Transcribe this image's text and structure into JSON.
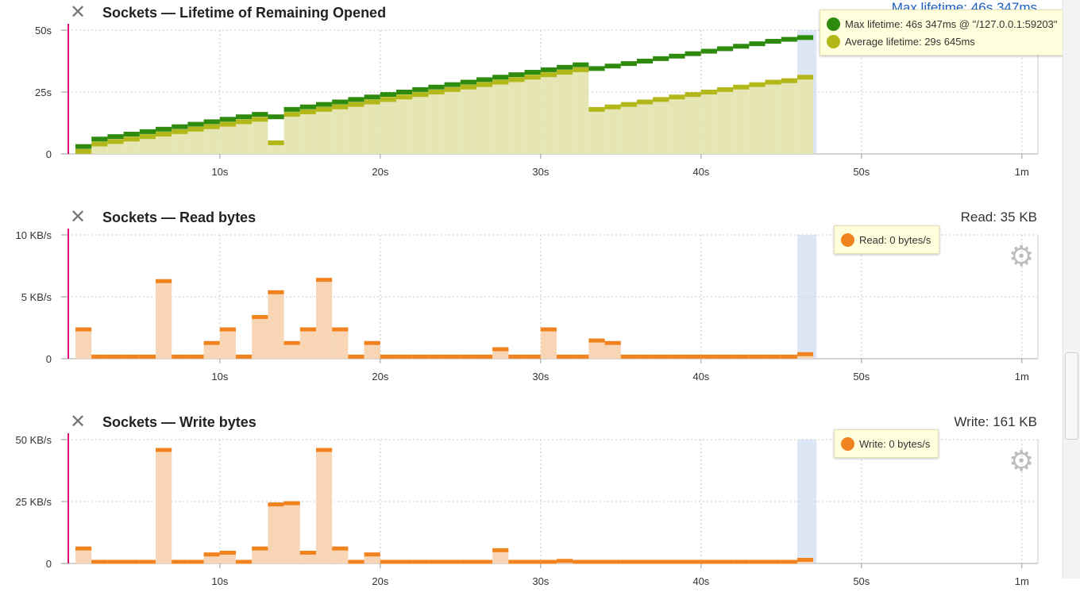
{
  "panels": [
    {
      "title": "Sockets — Lifetime of Remaining Opened",
      "stat": "Max lifetime: 46s 347ms",
      "tooltip": [
        {
          "color": "#2e8b0e",
          "text": "Max lifetime: 46s 347ms @ \"/127.0.0.1:59203\""
        },
        {
          "color": "#b3b81a",
          "text": "Average lifetime: 29s 645ms"
        }
      ]
    },
    {
      "title": "Sockets — Read bytes",
      "stat": "Read: 35 KB",
      "tooltip": [
        {
          "color": "#f0831e",
          "text": "Read: 0 bytes/s"
        }
      ]
    },
    {
      "title": "Sockets — Write bytes",
      "stat": "Write: 161 KB",
      "tooltip": [
        {
          "color": "#f0831e",
          "text": "Write: 0 bytes/s"
        }
      ]
    }
  ],
  "icons": {
    "close": "close-icon",
    "settings": "gear-icon"
  },
  "chart_data": [
    {
      "type": "area",
      "title": "Sockets — Lifetime of Remaining Opened",
      "x_tick_labels": [
        "10s",
        "20s",
        "30s",
        "40s",
        "50s",
        "1m"
      ],
      "x_ticks": [
        10,
        20,
        30,
        40,
        50,
        60
      ],
      "y_tick_labels": [
        "0",
        "25s",
        "50s"
      ],
      "y_ticks": [
        0,
        25,
        50
      ],
      "xlim": [
        0.5,
        61
      ],
      "ylim": [
        0,
        50
      ],
      "grid": true,
      "marker_x": 1,
      "highlight_range": [
        46,
        47.2
      ],
      "series": [
        {
          "name": "Max lifetime",
          "color": "#2e8b0e",
          "x": [
            1,
            2,
            3,
            4,
            5,
            6,
            7,
            8,
            9,
            10,
            11,
            12,
            13,
            14,
            15,
            16,
            17,
            18,
            19,
            20,
            21,
            22,
            23,
            24,
            25,
            26,
            27,
            28,
            29,
            30,
            31,
            32,
            33,
            34,
            35,
            36,
            37,
            38,
            39,
            40,
            41,
            42,
            43,
            44,
            45,
            46
          ],
          "values": [
            3,
            6,
            7,
            8,
            9,
            10,
            11,
            12,
            13,
            14,
            15,
            16,
            15,
            18,
            19,
            20,
            21,
            22,
            23,
            24,
            25,
            26,
            27,
            28,
            29,
            30,
            31,
            32,
            33,
            34,
            35,
            36,
            34.5,
            35.5,
            36.5,
            37.5,
            38.5,
            39.5,
            40.5,
            41.5,
            42.5,
            43.5,
            44.5,
            45.5,
            46.3,
            47
          ]
        },
        {
          "name": "Average lifetime",
          "color": "#b3b81a",
          "fill": "#e6e6b5",
          "x": [
            1,
            2,
            3,
            4,
            5,
            6,
            7,
            8,
            9,
            10,
            11,
            12,
            13,
            14,
            15,
            16,
            17,
            18,
            19,
            20,
            21,
            22,
            23,
            24,
            25,
            26,
            27,
            28,
            29,
            30,
            31,
            32,
            33,
            34,
            35,
            36,
            37,
            38,
            39,
            40,
            41,
            42,
            43,
            44,
            45,
            46
          ],
          "values": [
            1,
            4,
            5,
            6,
            7,
            8,
            9,
            10,
            11,
            12,
            13,
            14,
            4.5,
            16,
            17,
            18,
            19,
            20,
            21,
            22,
            23,
            24,
            25,
            26,
            27,
            28,
            29,
            30,
            31,
            32,
            33,
            34,
            18,
            19,
            20,
            21,
            22,
            23,
            24,
            25,
            26,
            27,
            28,
            29,
            29.6,
            31
          ]
        }
      ]
    },
    {
      "type": "bar",
      "title": "Sockets — Read bytes",
      "x_tick_labels": [
        "10s",
        "20s",
        "30s",
        "40s",
        "50s",
        "1m"
      ],
      "x_ticks": [
        10,
        20,
        30,
        40,
        50,
        60
      ],
      "y_tick_labels": [
        "0",
        "5 KB/s",
        "10 KB/s"
      ],
      "y_ticks": [
        0,
        5,
        10
      ],
      "xlim": [
        0.5,
        61
      ],
      "ylim": [
        0,
        10
      ],
      "grid": true,
      "marker_x": 1,
      "highlight_range": [
        46,
        47.2
      ],
      "series": [
        {
          "name": "Read",
          "unit": "KB/s",
          "color": "#f0831e",
          "fill": "#f8d5b5",
          "x": [
            1,
            2,
            3,
            4,
            5,
            6,
            7,
            8,
            9,
            10,
            11,
            12,
            13,
            14,
            15,
            16,
            17,
            18,
            19,
            20,
            21,
            22,
            23,
            24,
            25,
            26,
            27,
            28,
            29,
            30,
            31,
            32,
            33,
            34,
            35,
            36,
            37,
            38,
            39,
            40,
            41,
            42,
            43,
            44,
            45,
            46
          ],
          "values": [
            2.4,
            0.2,
            0.2,
            0.2,
            0.2,
            6.3,
            0.2,
            0.2,
            1.3,
            2.4,
            0.2,
            3.4,
            5.4,
            1.3,
            2.4,
            6.4,
            2.4,
            0.2,
            1.3,
            0.2,
            0.2,
            0.2,
            0.2,
            0.2,
            0.2,
            0.2,
            0.8,
            0.2,
            0.2,
            2.4,
            0.2,
            0.2,
            1.5,
            1.3,
            0.2,
            0.2,
            0.2,
            0.2,
            0.2,
            0.2,
            0.2,
            0.2,
            0.2,
            0.2,
            0.2,
            0.4
          ]
        }
      ]
    },
    {
      "type": "bar",
      "title": "Sockets — Write bytes",
      "x_tick_labels": [
        "10s",
        "20s",
        "30s",
        "40s",
        "50s",
        "1m"
      ],
      "x_ticks": [
        10,
        20,
        30,
        40,
        50,
        60
      ],
      "y_tick_labels": [
        "0",
        "25 KB/s",
        "50 KB/s"
      ],
      "y_ticks": [
        0,
        25,
        50
      ],
      "xlim": [
        0.5,
        61
      ],
      "ylim": [
        0,
        50
      ],
      "grid": true,
      "marker_x": 1,
      "highlight_range": [
        46,
        47.2
      ],
      "series": [
        {
          "name": "Write",
          "unit": "KB/s",
          "color": "#f0831e",
          "fill": "#f8d5b5",
          "x": [
            1,
            2,
            3,
            4,
            5,
            6,
            7,
            8,
            9,
            10,
            11,
            12,
            13,
            14,
            15,
            16,
            17,
            18,
            19,
            20,
            21,
            22,
            23,
            24,
            25,
            26,
            27,
            28,
            29,
            30,
            31,
            32,
            33,
            34,
            35,
            36,
            37,
            38,
            39,
            40,
            41,
            42,
            43,
            44,
            45,
            46
          ],
          "values": [
            6.2,
            0.8,
            0.8,
            0.8,
            0.8,
            46,
            0.8,
            0.8,
            3.8,
            4.5,
            0.8,
            6.2,
            24,
            24.5,
            4.5,
            46,
            6.2,
            0.8,
            3.8,
            0.8,
            0.8,
            0.8,
            0.8,
            0.8,
            0.8,
            0.8,
            5.5,
            0.8,
            0.8,
            0.8,
            1.2,
            0.8,
            0.8,
            0.8,
            0.8,
            0.8,
            0.8,
            0.8,
            0.8,
            0.8,
            0.8,
            0.8,
            0.8,
            0.8,
            0.8,
            1.6
          ]
        }
      ]
    }
  ]
}
